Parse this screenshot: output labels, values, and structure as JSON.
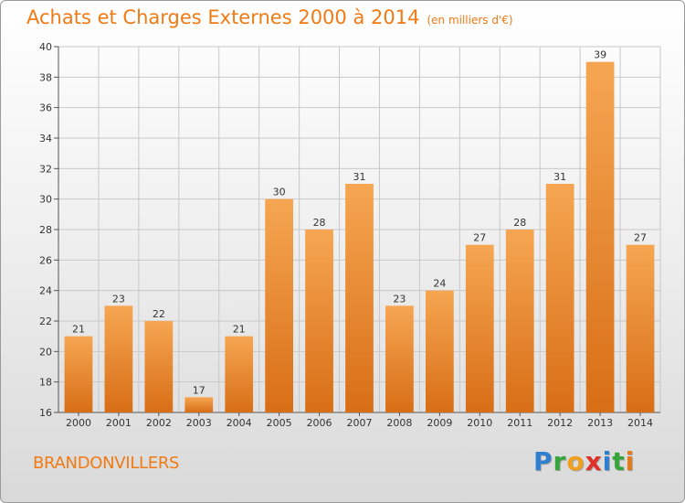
{
  "header": {
    "title": "Achats et Charges Externes 2000 à 2014",
    "subtitle": "(en milliers d'€)"
  },
  "footer": {
    "place": "BRANDONVILLERS",
    "logo_letters": [
      "P",
      "r",
      "o",
      "x",
      "i",
      "t",
      "i"
    ],
    "logo_colors": [
      "#2f7fd0",
      "#36a63a",
      "#f0a020",
      "#e0302a",
      "#2f7fd0",
      "#36a63a",
      "#e67a1a"
    ]
  },
  "colors": {
    "bar_light": "#f6a652",
    "bar_dark": "#d86e16",
    "accent": "#f07a14",
    "grid": "#c8c8c8"
  },
  "chart_data": {
    "type": "bar",
    "title": "Achats et Charges Externes 2000 à 2014",
    "subtitle": "(en milliers d'€)",
    "categories": [
      "2000",
      "2001",
      "2002",
      "2003",
      "2004",
      "2005",
      "2006",
      "2007",
      "2008",
      "2009",
      "2010",
      "2011",
      "2012",
      "2013",
      "2014"
    ],
    "values": [
      21,
      23,
      22,
      17,
      21,
      30,
      28,
      31,
      23,
      24,
      27,
      28,
      31,
      39,
      27
    ],
    "ylim": [
      16,
      40
    ],
    "yticks": [
      16,
      18,
      20,
      22,
      24,
      26,
      28,
      30,
      32,
      34,
      36,
      38,
      40
    ],
    "grid": true,
    "xlabel": "",
    "ylabel": ""
  }
}
